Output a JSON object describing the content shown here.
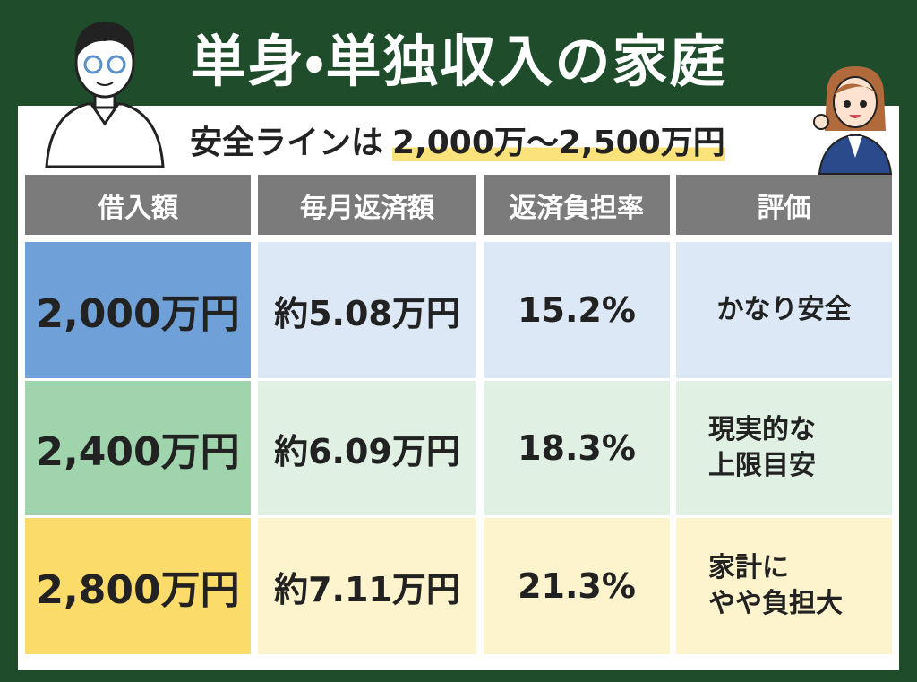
{
  "header": {
    "title": "単身・単独収入の家庭",
    "subtitle_label": "安全ラインは",
    "subtitle_range": "2,000万～2,500万円"
  },
  "table": {
    "columns": [
      "借入額",
      "毎月返済額",
      "返済負担率",
      "評価"
    ],
    "rows": [
      [
        "2,000万円",
        "約5.08万円",
        "15.2%",
        [
          "かなり安全"
        ]
      ],
      [
        "2,400万円",
        "約6.09万円",
        "18.3%",
        [
          "現実的な",
          "上限目安"
        ]
      ],
      [
        "2,800万円",
        "約7.11万円",
        "21.3%",
        [
          "家計に",
          "やや負担大"
        ]
      ]
    ]
  }
}
